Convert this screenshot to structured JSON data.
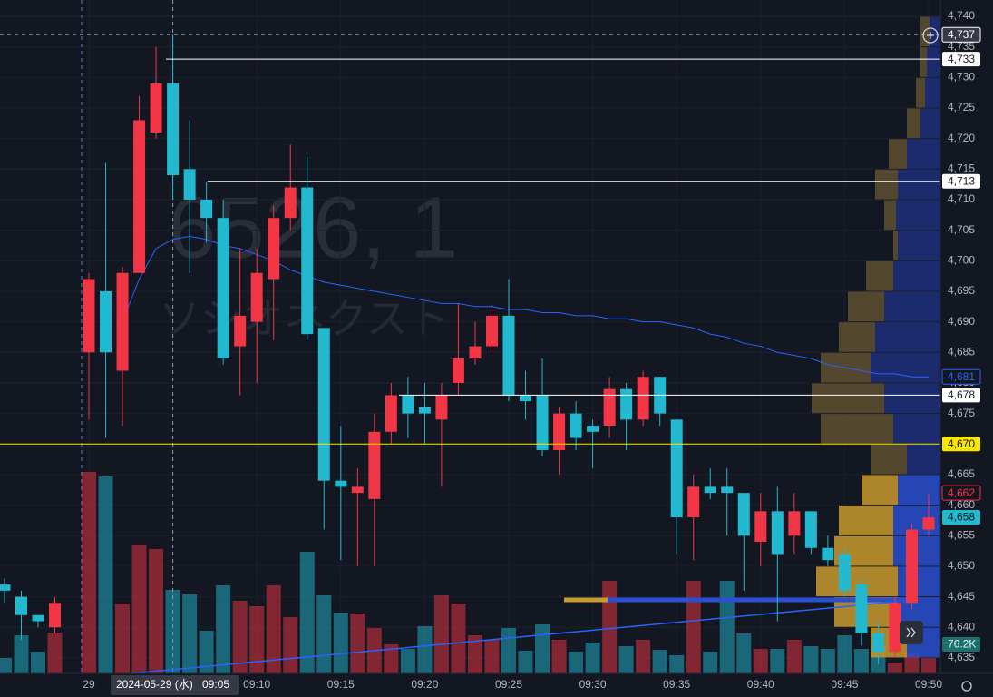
{
  "chart_data": {
    "type": "candlestick",
    "watermark": "6526, 1",
    "watermark_name": "ソシオネクスト",
    "categories": [
      null,
      null,
      null,
      null,
      "29",
      null,
      null,
      null,
      null,
      "09:05",
      null,
      null,
      null,
      null,
      "09:10",
      null,
      null,
      null,
      null,
      "09:15",
      null,
      null,
      null,
      null,
      "09:20",
      null,
      null,
      null,
      null,
      "09:25",
      null,
      null,
      null,
      null,
      "09:30",
      null,
      null,
      null,
      null,
      "09:35",
      null,
      null,
      null,
      null,
      "09:40",
      null,
      null,
      null,
      null,
      "09:45",
      null,
      null,
      null,
      null,
      "09:50"
    ],
    "crosshair_date": "2024-05-29 (水)",
    "open": [
      4647,
      4645,
      4642,
      4640,
      4685,
      4695,
      4682,
      4698,
      4721,
      4729,
      4715,
      4710,
      4707,
      4686,
      4690,
      4697,
      4707,
      4712,
      4689,
      4664,
      4662,
      4661,
      4672,
      4678,
      4676,
      4674,
      4680,
      4684,
      4686,
      4691,
      4678,
      4678,
      4669,
      4675,
      4673,
      4673,
      4679,
      4674,
      4681,
      4674,
      4658,
      4663,
      4663,
      4662,
      4654,
      4659,
      4655,
      4659,
      4653,
      4652,
      4647,
      4639,
      4636,
      4644,
      4656
    ],
    "high": [
      4648,
      4646,
      4642,
      4645,
      4698,
      4716,
      4699,
      4727,
      4735,
      4737,
      4723,
      4713,
      4710,
      4702,
      4702,
      4709,
      4719,
      4717,
      4689,
      4673,
      4666,
      4675,
      4680,
      4681,
      4680,
      4680,
      4693,
      4690,
      4692,
      4697,
      4682,
      4684,
      4676,
      4677,
      4674,
      4681,
      4680,
      4682,
      4681,
      4674,
      4665,
      4666,
      4666,
      4662,
      4662,
      4663,
      4662,
      4659,
      4655,
      4653,
      4648,
      4641,
      4645,
      4657,
      4662
    ],
    "low": [
      4644,
      4638,
      4640,
      4639,
      4674,
      4671,
      4673,
      4698,
      4720,
      4710,
      4698,
      4703,
      4683,
      4678,
      4680,
      4687,
      4705,
      4687,
      4656,
      4651,
      4650,
      4650,
      4670,
      4671,
      4670,
      4663,
      4678,
      4683,
      4685,
      4677,
      4674,
      4668,
      4665,
      4669,
      4666,
      4671,
      4669,
      4673,
      4673,
      4652,
      4651,
      4661,
      4655,
      4646,
      4650,
      4641,
      4652,
      4652,
      4650,
      4645,
      4637,
      4634,
      4635,
      4643,
      4655
    ],
    "close": [
      4646,
      4642,
      4641,
      4644,
      4697,
      4685,
      4698,
      4723,
      4729,
      4714,
      4710,
      4707,
      4684,
      4691,
      4698,
      4707,
      4712,
      4688,
      4664,
      4663,
      4663,
      4672,
      4678,
      4675,
      4675,
      4678,
      4684,
      4686,
      4691,
      4678,
      4677,
      4669,
      4675,
      4671,
      4672,
      4679,
      4674,
      4681,
      4675,
      4658,
      4663,
      4662,
      4662,
      4655,
      4659,
      4652,
      4659,
      4653,
      4651,
      4646,
      4639,
      4636,
      4644,
      4656,
      4658
    ],
    "up_color": "#f23645",
    "down_color": "#22b8cf",
    "volume": [
      76500,
      189000,
      108000,
      202500,
      999000,
      976500,
      346500,
      639000,
      616500,
      414000,
      391500,
      211500,
      436500,
      360000,
      333000,
      436500,
      279000,
      603000,
      387000,
      301500,
      297000,
      225000,
      144000,
      121500,
      234000,
      387000,
      346500,
      189000,
      166500,
      225000,
      112500,
      243000,
      166500,
      108000,
      153000,
      459000,
      135000,
      166500,
      117000,
      90000,
      459000,
      108000,
      459000,
      198000,
      121500,
      121500,
      166500,
      135000,
      121500,
      189000,
      121500,
      135000,
      54000,
      99000,
      76200
    ],
    "volume_label": "76.2K",
    "volume_ylim": [
      0,
      1350000
    ],
    "vwap": {
      "color": "#2962ff",
      "values": [
        null,
        null,
        null,
        null,
        null,
        null,
        4690,
        4697,
        4702,
        4703.5,
        4704,
        4703.5,
        4702.5,
        4702,
        4701,
        4700,
        4698.5,
        4697.5,
        4696.5,
        4696,
        4695.5,
        4695,
        4694.5,
        4694,
        4693.5,
        4693,
        4693,
        4692.5,
        4692.5,
        4692,
        4692,
        4691.5,
        4691.5,
        4691,
        4691,
        4690.5,
        4690.5,
        4690,
        4690,
        4689.5,
        4689,
        4688,
        4687.5,
        4686.5,
        4686,
        4685,
        4684.5,
        4684,
        4683,
        4682.5,
        4682,
        4681.5,
        4681.5,
        4681,
        4681
      ]
    },
    "profile": {
      "bins": [
        4635,
        4640,
        4645,
        4650,
        4655,
        4660,
        4665,
        4670,
        4675,
        4680,
        4685,
        4690,
        4695,
        4700,
        4705,
        4710,
        4715,
        4720,
        4725,
        4730,
        4735,
        4740
      ],
      "buy": [
        370000,
        470000,
        470000,
        520000,
        520000,
        470000,
        370000,
        520000,
        620000,
        770000,
        720000,
        620000,
        520000,
        470000,
        490000,
        470000,
        370000,
        220000,
        170000,
        150000,
        120000
      ],
      "sell": [
        400000,
        700000,
        900000,
        650000,
        600000,
        400000,
        400000,
        800000,
        800000,
        550000,
        400000,
        400000,
        300000,
        50000,
        130000,
        250000,
        200000,
        150000,
        100000,
        70000,
        100000
      ],
      "xlim": [
        0,
        1500000
      ],
      "value_area": [
        4635,
        4665
      ],
      "buy_colors": [
        "#2a4fd0",
        "#1f2f7a"
      ],
      "sell_colors": [
        "#c99a2e",
        "#5f5130"
      ]
    },
    "price_labels": [
      {
        "value": 4737,
        "label": "4,737",
        "bg": "#363a45",
        "fg": "#ffffff",
        "line": "dash"
      },
      {
        "value": 4733,
        "label": "4,733",
        "bg": "#ffffff",
        "fg": "#131722",
        "line": "solid"
      },
      {
        "value": 4713,
        "label": "4,713",
        "bg": "#ffffff",
        "fg": "#131722",
        "line": "solid"
      },
      {
        "value": 4681,
        "label": "4,681",
        "bg": "#131722",
        "fg": "#2962ff",
        "line": "none"
      },
      {
        "value": 4678,
        "label": "4,678",
        "bg": "#ffffff",
        "fg": "#131722",
        "line": "solid"
      },
      {
        "value": 4670,
        "label": "4,670",
        "bg": "#f7e600",
        "fg": "#131722",
        "line": "yellow"
      },
      {
        "value": 4662,
        "label": "4,662",
        "bg": "#131722",
        "fg": "#f23645",
        "line": "none"
      },
      {
        "value": 4658,
        "label": "4,658",
        "bg": "#22b8cf",
        "fg": "#131722",
        "line": "none"
      }
    ],
    "ylim": [
      4632,
      4741
    ],
    "yticks": [
      {
        "value": 4635,
        "label": "4,635"
      },
      {
        "value": 4640,
        "label": "4,640"
      },
      {
        "value": 4645,
        "label": "4,645"
      },
      {
        "value": 4650,
        "label": "4,650"
      },
      {
        "value": 4655,
        "label": "4,655"
      },
      {
        "value": 4660,
        "label": "4,660"
      },
      {
        "value": 4665,
        "label": "4,665"
      },
      {
        "value": 4670,
        "label": "4,670"
      },
      {
        "value": 4675,
        "label": "4,675"
      },
      {
        "value": 4680,
        "label": "4,680"
      },
      {
        "value": 4685,
        "label": "4,685"
      },
      {
        "value": 4690,
        "label": "4,690"
      },
      {
        "value": 4695,
        "label": "4,695"
      },
      {
        "value": 4700,
        "label": "4,700"
      },
      {
        "value": 4705,
        "label": "4,705"
      },
      {
        "value": 4710,
        "label": "4,710"
      },
      {
        "value": 4715,
        "label": "4,715"
      },
      {
        "value": 4720,
        "label": "4,720"
      },
      {
        "value": 4725,
        "label": "4,725"
      },
      {
        "value": 4730,
        "label": "4,730"
      },
      {
        "value": 4735,
        "label": "4,735"
      },
      {
        "value": 4740,
        "label": "4,740"
      }
    ],
    "grid": true
  }
}
